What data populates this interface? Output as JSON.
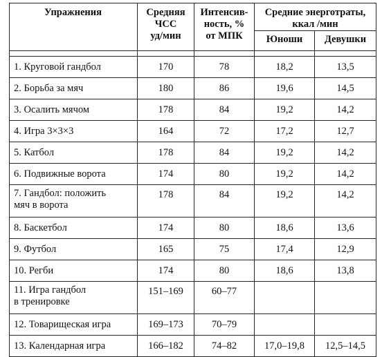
{
  "headers": {
    "exercise": "Упражнения",
    "hr": [
      "Средняя",
      "ЧСС",
      "уд/мин"
    ],
    "intensity": [
      "Интенсив-",
      "ность, %",
      "от МПК"
    ],
    "energy": [
      "Средние энерготраты,",
      "ккал /мин"
    ],
    "boys": "Юноши",
    "girls": "Девушки"
  },
  "rows": [
    {
      "name": [
        "1. Круговой гандбол"
      ],
      "hr": "170",
      "intensity": "78",
      "boys": "18,2",
      "girls": "13,5"
    },
    {
      "name": [
        "2. Борьба за мяч"
      ],
      "hr": "180",
      "intensity": "86",
      "boys": "19,6",
      "girls": "14,5"
    },
    {
      "name": [
        "3. Осалить мячом"
      ],
      "hr": "178",
      "intensity": "84",
      "boys": "19,2",
      "girls": "14,2"
    },
    {
      "name": [
        "4. Игра 3×3×3"
      ],
      "hr": "164",
      "intensity": "72",
      "boys": "17,2",
      "girls": "12,7"
    },
    {
      "name": [
        "5. Катбол"
      ],
      "hr": "178",
      "intensity": "84",
      "boys": "19,2",
      "girls": "14,2"
    },
    {
      "name": [
        "6. Подвижные ворота"
      ],
      "hr": "174",
      "intensity": "80",
      "boys": "19,2",
      "girls": "14,2"
    },
    {
      "name": [
        "7. Гандбол: положить",
        "мяч в ворота"
      ],
      "hr": "178",
      "intensity": "84",
      "boys": "19,2",
      "girls": "14,2"
    },
    {
      "name": [
        "8. Баскетбол"
      ],
      "hr": "174",
      "intensity": "80",
      "boys": "18,6",
      "girls": "13,6"
    },
    {
      "name": [
        "9. Футбол"
      ],
      "hr": "165",
      "intensity": "75",
      "boys": "17,4",
      "girls": "12,9"
    },
    {
      "name": [
        "10. Регби"
      ],
      "hr": "174",
      "intensity": "80",
      "boys": "18,6",
      "girls": "13,8"
    },
    {
      "name": [
        "11. Игра гандбол",
        "в тренировке"
      ],
      "hr": "151–169",
      "intensity": "60–77",
      "boys": "",
      "girls": ""
    },
    {
      "name": [
        "12. Товарищеская игра"
      ],
      "hr": "169–173",
      "intensity": "70–79",
      "boys": "",
      "girls": ""
    },
    {
      "name": [
        "13. Календарная игра"
      ],
      "hr": "166–182",
      "intensity": "74–82",
      "boys": "17,0–19,8",
      "girls": "12,5–14,5"
    }
  ]
}
